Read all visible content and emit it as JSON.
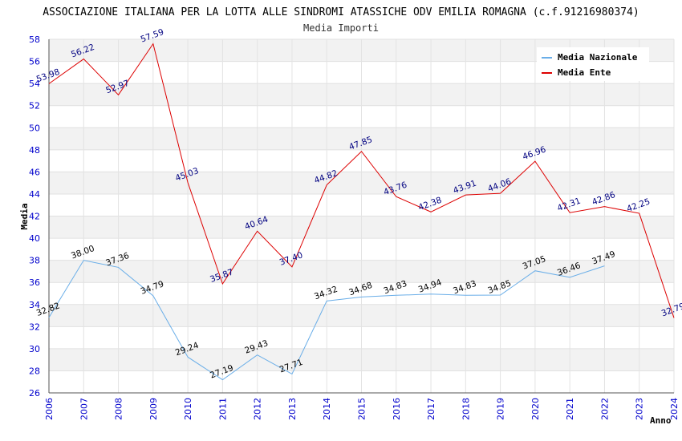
{
  "chart_data": {
    "type": "line",
    "title": "ASSOCIAZIONE ITALIANA PER LA LOTTA ALLE SINDROMI ATASSICHE ODV EMILIA ROMAGNA (c.f.91216980374)",
    "subtitle": "Media Importi",
    "xlabel": "Anno",
    "ylabel": "Media",
    "ylim": [
      26,
      58
    ],
    "ytick_step": 2,
    "categories": [
      "2006",
      "2007",
      "2008",
      "2009",
      "2010",
      "2011",
      "2012",
      "2013",
      "2014",
      "2015",
      "2016",
      "2017",
      "2018",
      "2019",
      "2020",
      "2021",
      "2022",
      "2023",
      "2024"
    ],
    "series": [
      {
        "name": "Media Nazionale",
        "color": "#6aaee8",
        "values": [
          32.82,
          38.0,
          37.36,
          34.79,
          29.24,
          27.19,
          29.43,
          27.71,
          34.32,
          34.68,
          34.83,
          34.94,
          34.83,
          34.85,
          37.05,
          36.46,
          37.49,
          null,
          null
        ]
      },
      {
        "name": "Media Ente",
        "color": "#dd0000",
        "values": [
          53.98,
          56.22,
          52.97,
          57.59,
          45.03,
          35.87,
          40.64,
          37.4,
          44.82,
          47.85,
          43.76,
          42.38,
          43.91,
          44.06,
          46.96,
          42.31,
          42.86,
          42.25,
          32.79
        ]
      }
    ],
    "legend_position": "top-right",
    "grid": true
  }
}
